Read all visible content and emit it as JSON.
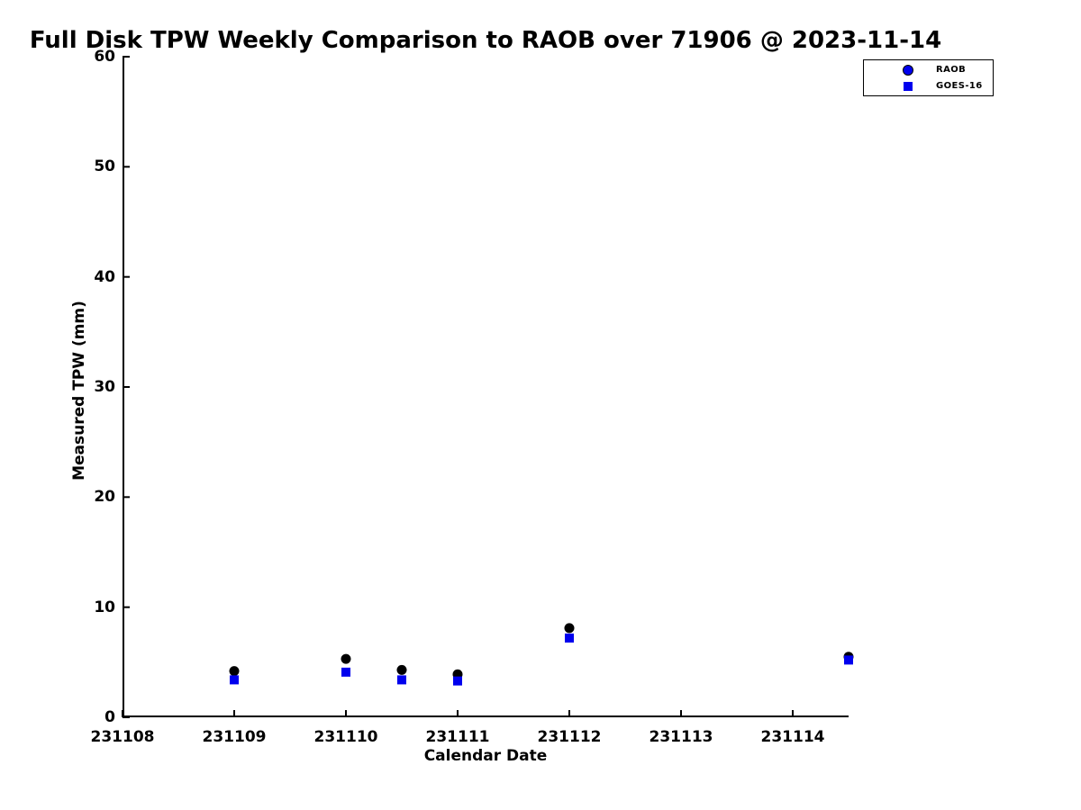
{
  "chart_data": {
    "type": "scatter",
    "title": "Full Disk TPW Weekly Comparison to RAOB over 71906 @ 2023-11-14",
    "xlabel": "Calendar Date",
    "ylabel": "Measured TPW (mm)",
    "xlim": [
      231108,
      231114.5
    ],
    "ylim": [
      0,
      60
    ],
    "x_ticks": [
      231108,
      231109,
      231110,
      231111,
      231112,
      231113,
      231114
    ],
    "x_tick_labels": [
      "231108",
      "231109",
      "231110",
      "231111",
      "231112",
      "231113",
      "231114"
    ],
    "y_ticks": [
      0,
      10,
      20,
      30,
      40,
      50,
      60
    ],
    "y_tick_labels": [
      "0",
      "10",
      "20",
      "30",
      "40",
      "50",
      "60"
    ],
    "grid": false,
    "legend_position": "top-right",
    "x": [
      231109,
      231110,
      231110.5,
      231111,
      231112,
      231114.5
    ],
    "series": [
      {
        "name": "RAOB",
        "marker": "circle",
        "color": "#000000",
        "legend_marker_color": "#0000ee",
        "values": [
          4.2,
          5.3,
          4.3,
          3.9,
          8.1,
          5.5
        ]
      },
      {
        "name": "GOES-16",
        "marker": "square",
        "color": "#0000ee",
        "legend_marker_color": "#0000ee",
        "values": [
          3.4,
          4.1,
          3.4,
          3.3,
          7.2,
          5.2
        ]
      }
    ],
    "colors": {
      "marker_blue": "#0000ee",
      "marker_black": "#000000",
      "axis": "#000000",
      "background": "#ffffff"
    }
  }
}
